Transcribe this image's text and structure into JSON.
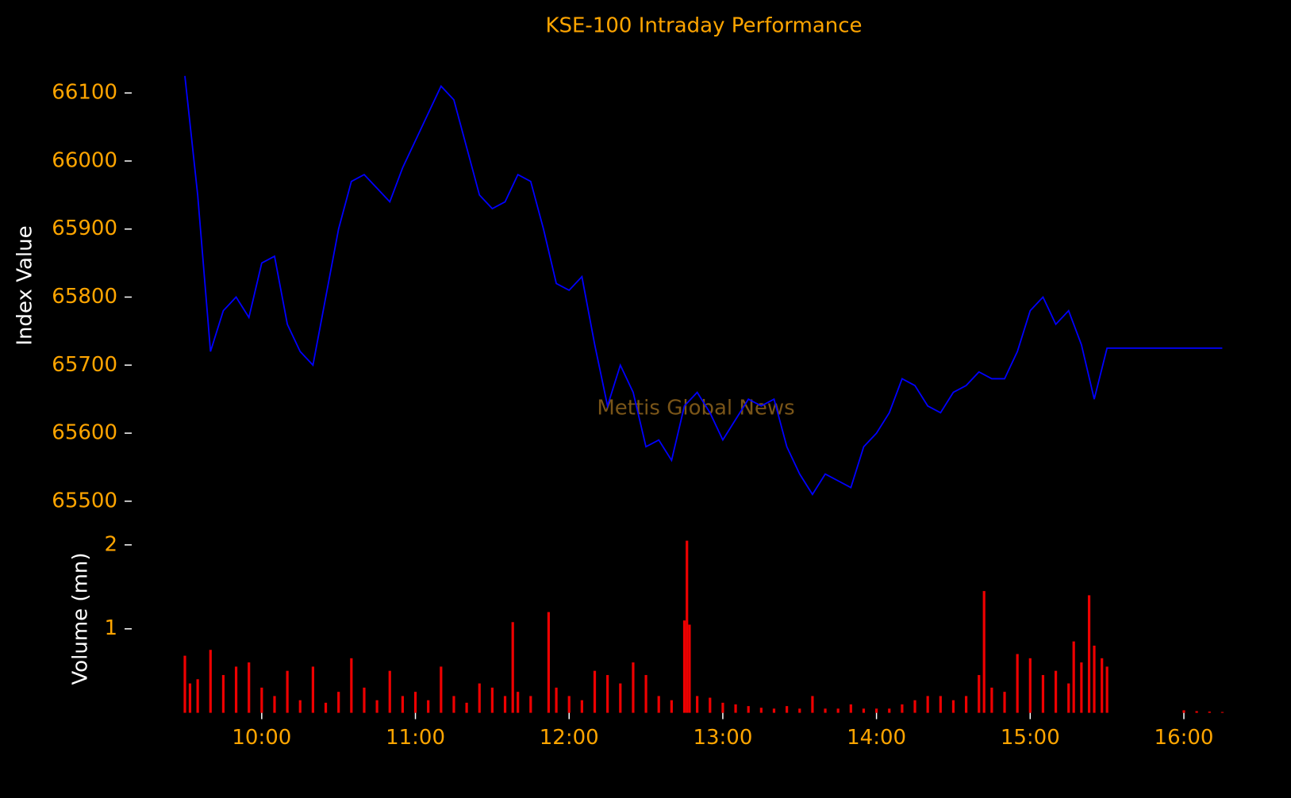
{
  "chart_data": [
    {
      "type": "line",
      "title": "KSE-100 Intraday Performance",
      "y_label": "Index Value",
      "annotation": "Mettis Global News",
      "x": [
        570,
        575,
        580,
        585,
        590,
        595,
        600,
        605,
        610,
        615,
        620,
        625,
        630,
        635,
        640,
        645,
        650,
        655,
        660,
        665,
        670,
        675,
        680,
        685,
        690,
        695,
        700,
        705,
        710,
        715,
        720,
        725,
        730,
        735,
        740,
        745,
        750,
        755,
        760,
        765,
        770,
        775,
        780,
        785,
        790,
        795,
        800,
        805,
        810,
        815,
        820,
        825,
        830,
        835,
        840,
        845,
        850,
        855,
        860,
        865,
        870,
        875,
        880,
        885,
        890,
        895,
        900,
        905,
        910,
        915,
        920,
        925,
        930,
        975
      ],
      "series": [
        {
          "color": "#0000ff",
          "values": [
            66125,
            65950,
            65720,
            65780,
            65800,
            65770,
            65850,
            65860,
            65760,
            65720,
            65700,
            65800,
            65900,
            65970,
            65980,
            65960,
            65940,
            65990,
            66030,
            66070,
            66110,
            66090,
            66020,
            65950,
            65930,
            65940,
            65980,
            65970,
            65900,
            65820,
            65810,
            65830,
            65730,
            65640,
            65700,
            65660,
            65580,
            65590,
            65560,
            65640,
            65660,
            65630,
            65590,
            65620,
            65650,
            65640,
            65650,
            65580,
            65540,
            65510,
            65540,
            65530,
            65520,
            65580,
            65600,
            65630,
            65680,
            65670,
            65640,
            65630,
            65660,
            65670,
            65690,
            65680,
            65680,
            65720,
            65780,
            65800,
            65760,
            65780,
            65730,
            65650,
            65725,
            65725
          ]
        }
      ],
      "xlim": [
        570,
        990
      ],
      "ylim": [
        65480,
        66150
      ],
      "yticks": [
        65500,
        65600,
        65700,
        65800,
        65900,
        66000,
        66100
      ]
    },
    {
      "type": "bar",
      "y_label": "Volume (mn)",
      "x": [
        570,
        572,
        575,
        580,
        585,
        590,
        595,
        600,
        605,
        610,
        615,
        620,
        625,
        630,
        635,
        640,
        645,
        650,
        655,
        660,
        665,
        670,
        675,
        680,
        685,
        690,
        695,
        698,
        700,
        705,
        712,
        715,
        720,
        725,
        730,
        735,
        740,
        745,
        750,
        755,
        760,
        765,
        766,
        767,
        770,
        775,
        780,
        785,
        790,
        795,
        800,
        805,
        810,
        815,
        820,
        825,
        830,
        835,
        840,
        845,
        850,
        855,
        860,
        865,
        870,
        875,
        880,
        882,
        885,
        890,
        895,
        900,
        905,
        910,
        915,
        917,
        920,
        923,
        925,
        928,
        930,
        960,
        965,
        970,
        975
      ],
      "series": [
        {
          "color": "#ee0000",
          "values": [
            0.68,
            0.35,
            0.4,
            0.75,
            0.45,
            0.55,
            0.6,
            0.3,
            0.2,
            0.5,
            0.15,
            0.55,
            0.12,
            0.25,
            0.65,
            0.3,
            0.15,
            0.5,
            0.2,
            0.25,
            0.15,
            0.55,
            0.2,
            0.12,
            0.35,
            0.3,
            0.2,
            1.08,
            0.25,
            0.2,
            1.2,
            0.3,
            0.2,
            0.15,
            0.5,
            0.45,
            0.35,
            0.6,
            0.45,
            0.2,
            0.15,
            1.1,
            2.05,
            1.05,
            0.2,
            0.18,
            0.12,
            0.1,
            0.08,
            0.06,
            0.05,
            0.08,
            0.05,
            0.2,
            0.05,
            0.05,
            0.1,
            0.05,
            0.05,
            0.05,
            0.1,
            0.15,
            0.2,
            0.2,
            0.15,
            0.2,
            0.45,
            1.45,
            0.3,
            0.25,
            0.7,
            0.65,
            0.45,
            0.5,
            0.35,
            0.85,
            0.6,
            1.4,
            0.8,
            0.65,
            0.55,
            0.03,
            0.02,
            0.015,
            0.01
          ]
        }
      ],
      "xlim": [
        570,
        990
      ],
      "xticks": [
        {
          "value": 600,
          "label": "10:00"
        },
        {
          "value": 660,
          "label": "11:00"
        },
        {
          "value": 720,
          "label": "12:00"
        },
        {
          "value": 780,
          "label": "13:00"
        },
        {
          "value": 840,
          "label": "14:00"
        },
        {
          "value": 900,
          "label": "15:00"
        },
        {
          "value": 960,
          "label": "16:00"
        }
      ],
      "ylim": [
        0,
        2.05
      ],
      "yticks": [
        1,
        2
      ]
    }
  ]
}
